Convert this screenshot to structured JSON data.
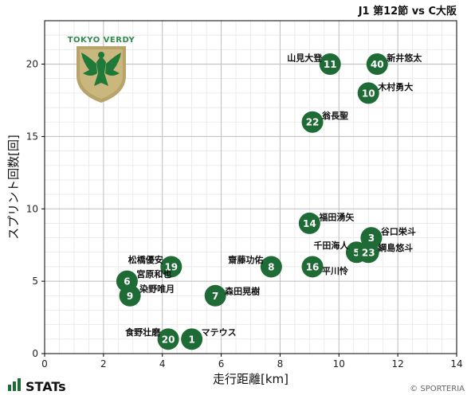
{
  "chart_data": {
    "type": "scatter",
    "title": "J1 第12節 vs C大阪",
    "xlabel": "走行距離[km]",
    "ylabel": "スプリント回数[回]",
    "xlim": [
      0,
      14
    ],
    "ylim": [
      0,
      23
    ],
    "xticks": [
      0,
      2,
      4,
      6,
      8,
      10,
      12,
      14
    ],
    "yticks": [
      0,
      5,
      10,
      15,
      20
    ],
    "grid": true,
    "marker_color": "#1e6b35",
    "points": [
      {
        "name": "山見大登",
        "number": "11",
        "x": 9.7,
        "y": 20
      },
      {
        "name": "新井悠太",
        "number": "40",
        "x": 11.3,
        "y": 20
      },
      {
        "name": "木村勇大",
        "number": "10",
        "x": 11.0,
        "y": 18
      },
      {
        "name": "翁長聖",
        "number": "22",
        "x": 9.1,
        "y": 16
      },
      {
        "name": "福田湧矢",
        "number": "14",
        "x": 9.0,
        "y": 9
      },
      {
        "name": "谷口栄斗",
        "number": "3",
        "x": 11.1,
        "y": 8
      },
      {
        "name": "千田海人",
        "number": "5",
        "x": 10.6,
        "y": 7
      },
      {
        "name": "綱島悠斗",
        "number": "23",
        "x": 11.0,
        "y": 7
      },
      {
        "name": "松橋優安",
        "number": "19",
        "x": 4.3,
        "y": 6
      },
      {
        "name": "齋藤功佑",
        "number": "8",
        "x": 7.7,
        "y": 6
      },
      {
        "name": "平川怜",
        "number": "16",
        "x": 9.1,
        "y": 6
      },
      {
        "name": "宮原和也",
        "number": "6",
        "x": 2.8,
        "y": 5
      },
      {
        "name": "染野唯月",
        "number": "9",
        "x": 2.9,
        "y": 4
      },
      {
        "name": "森田晃樹",
        "number": "7",
        "x": 5.8,
        "y": 4
      },
      {
        "name": "食野壮磨",
        "number": "20",
        "x": 4.2,
        "y": 1
      },
      {
        "name": "マテウス",
        "number": "1",
        "x": 5.0,
        "y": 1
      }
    ]
  },
  "branding": {
    "logo_text": "TOKYO VERDY",
    "brand": "STATs",
    "copyright": "© SPORTERIA"
  }
}
